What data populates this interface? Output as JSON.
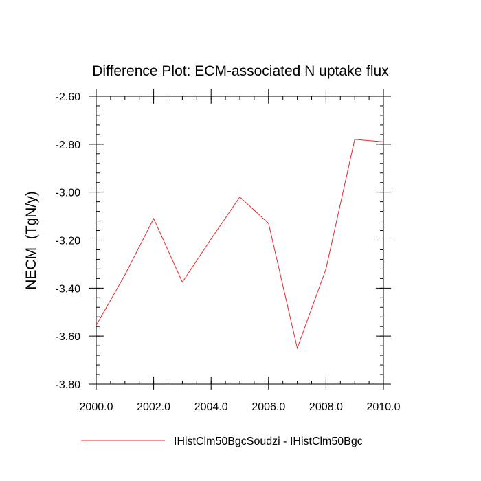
{
  "chart_data": {
    "type": "line",
    "title": "Difference Plot: ECM-associated N uptake flux",
    "ylabel": "NECM  (TgN/y)",
    "xlabel": "",
    "xlim": [
      2000,
      2010
    ],
    "ylim": [
      -3.8,
      -2.6
    ],
    "x_ticks": [
      2000,
      2002,
      2004,
      2006,
      2008,
      2010
    ],
    "x_tick_labels": [
      "2000.0",
      "2002.0",
      "2004.0",
      "2006.0",
      "2008.0",
      "2010.0"
    ],
    "y_ticks": [
      -2.6,
      -2.8,
      -3.0,
      -3.2,
      -3.4,
      -3.6,
      -3.8
    ],
    "y_tick_labels": [
      "-2.60",
      "-2.80",
      "-3.00",
      "-3.20",
      "-3.40",
      "-3.60",
      "-3.80"
    ],
    "grid": false,
    "legend_position": "bottom",
    "series": [
      {
        "name": "IHistClm50BgcSoudzi - IHistClm50Bgc",
        "color": "#e8262a",
        "x": [
          2000,
          2001,
          2002,
          2003,
          2004,
          2005,
          2006,
          2007,
          2008,
          2009,
          2010
        ],
        "y": [
          -3.555,
          -3.345,
          -3.11,
          -3.375,
          -3.195,
          -3.02,
          -3.13,
          -3.65,
          -3.32,
          -2.78,
          -2.79
        ]
      }
    ]
  }
}
